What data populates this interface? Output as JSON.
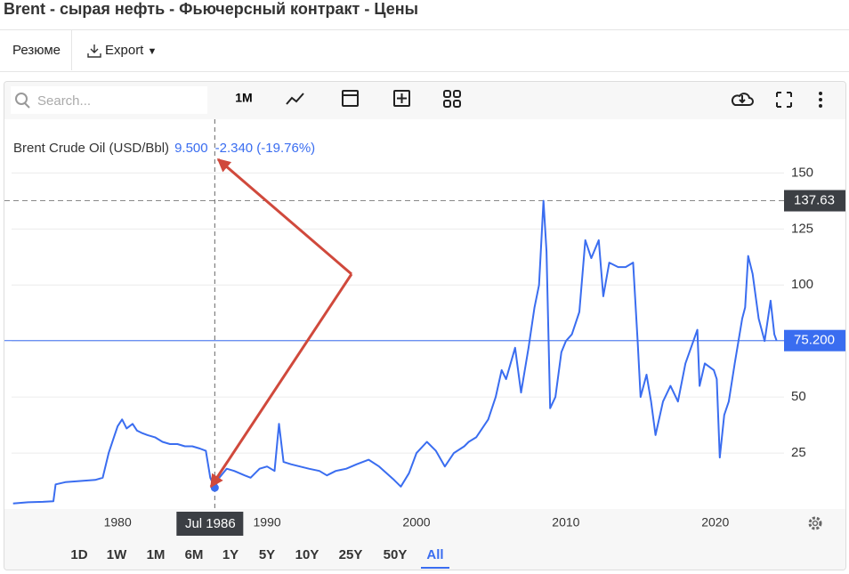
{
  "header": {
    "title": "Brent - сырая нефть - Фьючерсный контракт - Цены"
  },
  "tabs": [
    "Резюме",
    "Export"
  ],
  "toolbar": {
    "search_placeholder": "Search...",
    "interval": "1M"
  },
  "chart_data": {
    "type": "line",
    "title": "Brent Crude Oil (USD/Bbl)",
    "color": "#3a6df0",
    "x": [
      1973.0,
      1974.0,
      1975.0,
      1975.7,
      1975.85,
      1976.5,
      1977.5,
      1978.5,
      1979.0,
      1979.4,
      1979.8,
      1980.0,
      1980.3,
      1980.6,
      1981.0,
      1981.3,
      1981.6,
      1982.0,
      1982.5,
      1983.0,
      1983.5,
      1984.0,
      1984.5,
      1985.0,
      1985.5,
      1985.9,
      1986.2,
      1986.5,
      1986.8,
      1987.3,
      1987.8,
      1988.5,
      1988.9,
      1989.5,
      1990.0,
      1990.5,
      1990.8,
      1991.1,
      1991.6,
      1992.2,
      1992.8,
      1993.5,
      1994.0,
      1994.6,
      1995.3,
      1996.0,
      1996.8,
      1997.5,
      1998.0,
      1998.5,
      1998.95,
      1999.5,
      2000.0,
      2000.7,
      2001.3,
      2001.9,
      2002.5,
      2003.2,
      2003.5,
      2004.0,
      2004.8,
      2005.3,
      2005.7,
      2006.0,
      2006.6,
      2007.0,
      2007.5,
      2007.9,
      2008.2,
      2008.5,
      2008.7,
      2008.95,
      2009.3,
      2009.7,
      2010.0,
      2010.4,
      2010.9,
      2011.3,
      2011.7,
      2012.2,
      2012.5,
      2012.9,
      2013.5,
      2014.0,
      2014.5,
      2014.8,
      2015.0,
      2015.4,
      2015.7,
      2016.0,
      2016.5,
      2017.0,
      2017.5,
      2018.0,
      2018.8,
      2018.95,
      2019.3,
      2019.9,
      2020.1,
      2020.3,
      2020.6,
      2020.9,
      2021.3,
      2021.8,
      2022.0,
      2022.2,
      2022.5,
      2022.9,
      2023.3,
      2023.7,
      2023.95,
      2024.1
    ],
    "values": [
      2.5,
      3,
      3.2,
      3.5,
      11,
      12,
      12.5,
      13,
      14,
      25,
      33,
      37,
      40,
      36,
      38,
      35,
      34,
      33,
      32,
      30,
      29,
      29,
      28,
      28,
      27,
      26,
      14,
      9.5,
      14,
      18,
      17,
      15,
      14,
      18,
      19,
      17,
      38,
      21,
      20,
      19,
      18,
      17,
      15,
      17,
      18,
      20,
      22,
      19,
      16,
      13,
      10,
      16,
      25,
      30,
      26,
      19,
      25,
      28,
      30,
      32,
      40,
      50,
      62,
      58,
      72,
      52,
      72,
      90,
      100,
      137.63,
      115,
      45,
      50,
      70,
      75,
      78,
      88,
      120,
      112,
      120,
      95,
      110,
      108,
      108,
      110,
      75,
      50,
      60,
      48,
      33,
      48,
      55,
      48,
      65,
      80,
      55,
      65,
      62,
      58,
      23,
      42,
      48,
      65,
      85,
      90,
      113,
      105,
      85,
      75,
      93,
      78,
      75.2
    ],
    "xlim": [
      1972.9,
      2024.6
    ],
    "ylim": [
      0,
      174
    ],
    "xticks": [
      1980,
      1990,
      2000,
      2010,
      2020
    ],
    "yticks": [
      25,
      50,
      75,
      100,
      125,
      150
    ],
    "grid": true,
    "y_axis_side": "right",
    "hover": {
      "x": 1986.5,
      "x_label": "Jul 1986",
      "value": 9.5,
      "value_label": "9.500",
      "change_label": "-2.340 (-19.76%)"
    },
    "price_lines": [
      {
        "value": 137.63,
        "label": "137.63",
        "color": "#3c3f44"
      },
      {
        "value": 75.2,
        "label": "75.200",
        "color": "#3a6df0"
      }
    ]
  },
  "periods": [
    "1D",
    "1W",
    "1M",
    "6M",
    "1Y",
    "5Y",
    "10Y",
    "25Y",
    "50Y",
    "All"
  ],
  "active_period_index": 9
}
